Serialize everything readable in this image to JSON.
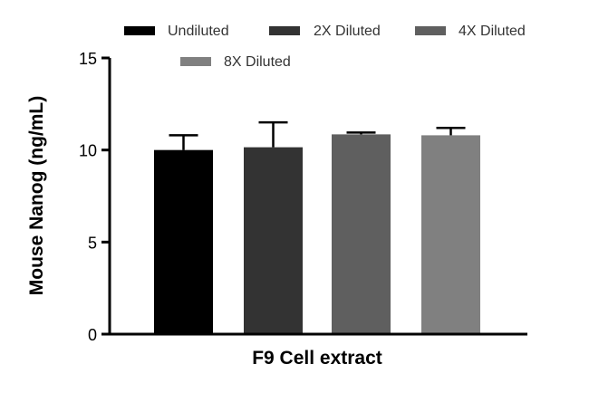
{
  "chart_data": {
    "type": "bar",
    "xlabel": "F9 Cell extract",
    "ylabel": "Mouse Nanog (ng/mL)",
    "ylim": [
      0,
      15
    ],
    "yticks": [
      0,
      5,
      10,
      15
    ],
    "grid": false,
    "legend_position": "top",
    "series": [
      {
        "name": "Undiluted",
        "value": 10.0,
        "error": 0.8,
        "color": "#000000"
      },
      {
        "name": "2X Diluted",
        "value": 10.15,
        "error": 1.35,
        "color": "#333333"
      },
      {
        "name": "4X Diluted",
        "value": 10.85,
        "error": 0.1,
        "color": "#5f5f5f"
      },
      {
        "name": "8X Diluted",
        "value": 10.8,
        "error": 0.4,
        "color": "#808080"
      }
    ]
  }
}
